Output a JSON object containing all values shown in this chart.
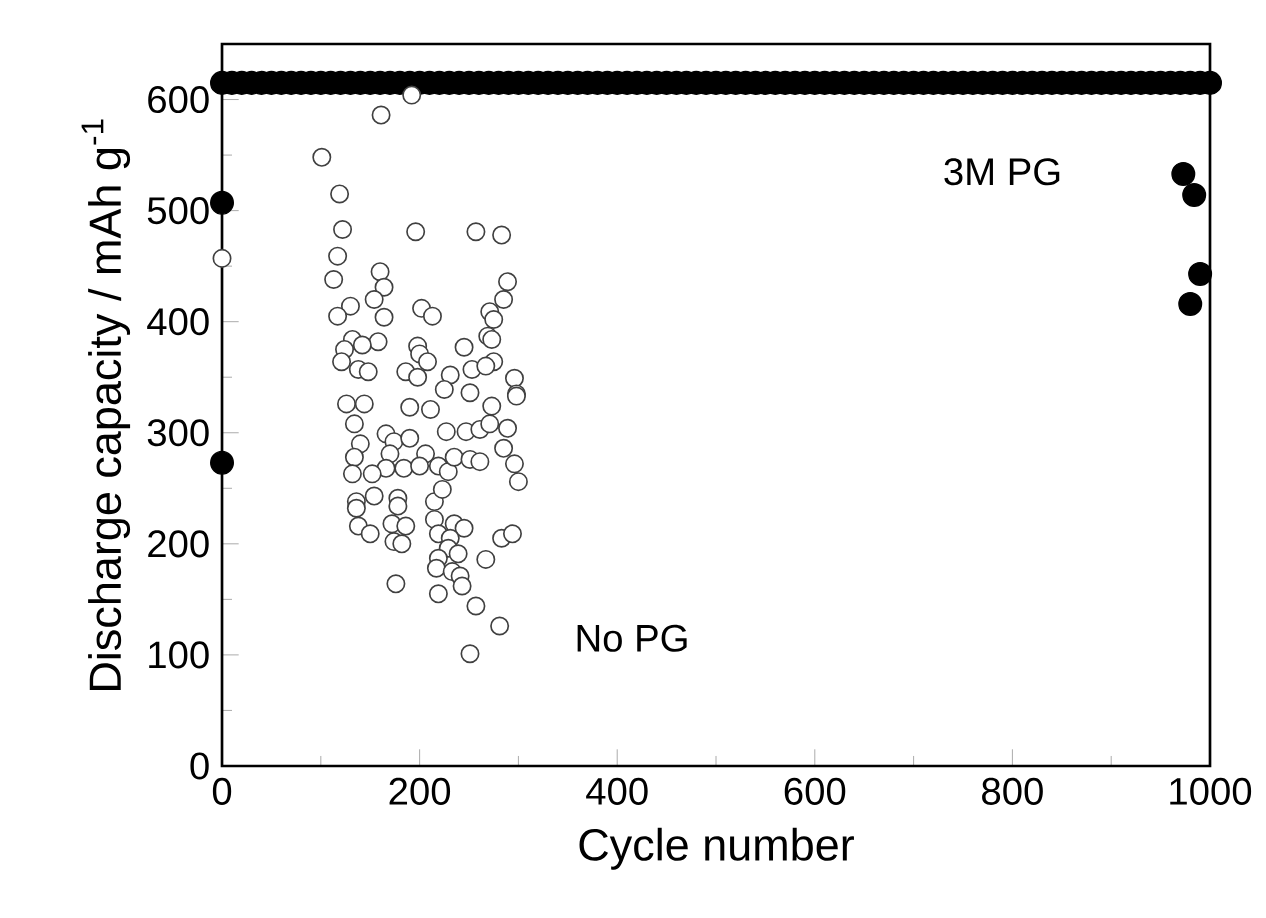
{
  "chart_data": {
    "type": "scatter",
    "xlabel": "Cycle number",
    "ylabel": "Discharge capacity / mAh g$^{-1}$",
    "xlim": [
      0,
      1000
    ],
    "ylim": [
      0,
      650
    ],
    "xticks": [
      0,
      200,
      400,
      600,
      800,
      1000
    ],
    "yticks": [
      0,
      100,
      200,
      300,
      400,
      500,
      600
    ],
    "grid": false,
    "series": [
      {
        "name": "3M PG",
        "color": "#000000",
        "marker": "circle",
        "x": [
          0,
          0,
          973,
          984,
          990,
          980,
          0,
          10,
          20,
          30,
          40,
          50,
          60,
          70,
          80,
          90,
          100,
          110,
          120,
          130,
          140,
          150,
          160,
          170,
          180,
          190,
          200,
          210,
          220,
          230,
          240,
          250,
          260,
          270,
          280,
          290,
          300,
          310,
          320,
          330,
          340,
          350,
          360,
          370,
          380,
          390,
          400,
          410,
          420,
          430,
          440,
          450,
          460,
          470,
          480,
          490,
          500,
          510,
          520,
          530,
          540,
          550,
          560,
          570,
          580,
          590,
          600,
          610,
          620,
          630,
          640,
          650,
          660,
          670,
          680,
          690,
          700,
          710,
          720,
          730,
          740,
          750,
          760,
          770,
          780,
          790,
          800,
          810,
          820,
          830,
          840,
          850,
          860,
          870,
          880,
          890,
          900,
          910,
          920,
          930,
          940,
          950,
          960,
          970,
          980,
          990,
          1000
        ],
        "values": [
          507,
          273,
          533,
          514,
          443,
          416,
          615,
          615,
          615,
          615,
          615,
          615,
          615,
          615,
          615,
          615,
          615,
          615,
          615,
          615,
          615,
          615,
          615,
          615,
          615,
          615,
          615,
          615,
          615,
          615,
          615,
          615,
          615,
          615,
          615,
          615,
          615,
          615,
          615,
          615,
          615,
          615,
          615,
          615,
          615,
          615,
          615,
          615,
          615,
          615,
          615,
          615,
          615,
          615,
          615,
          615,
          615,
          615,
          615,
          615,
          615,
          615,
          615,
          615,
          615,
          615,
          615,
          615,
          615,
          615,
          615,
          615,
          615,
          615,
          615,
          615,
          615,
          615,
          615,
          615,
          615,
          615,
          615,
          615,
          615,
          615,
          615,
          615,
          615,
          615,
          615,
          615,
          615,
          615,
          615,
          615,
          615,
          615,
          615,
          615,
          615,
          615,
          615,
          615,
          615,
          615,
          615
        ]
      },
      {
        "name": "No PG",
        "color": "#404040",
        "marker": "circle",
        "x": [
          0,
          192,
          161,
          101,
          119,
          122,
          196,
          257,
          283,
          117,
          113,
          160,
          164,
          289,
          154,
          285,
          130,
          117,
          164,
          202,
          213,
          271,
          275,
          158,
          132,
          142,
          124,
          121,
          138,
          148,
          198,
          200,
          208,
          186,
          198,
          245,
          231,
          253,
          269,
          273,
          275,
          267,
          296,
          225,
          251,
          298,
          298,
          126,
          144,
          190,
          211,
          273,
          134,
          166,
          174,
          190,
          227,
          247,
          261,
          271,
          289,
          140,
          134,
          170,
          206,
          184,
          166,
          200,
          219,
          229,
          235,
          251,
          261,
          285,
          296,
          300,
          132,
          152,
          154,
          136,
          136,
          178,
          178,
          215,
          223,
          172,
          186,
          138,
          150,
          215,
          235,
          245,
          219,
          231,
          174,
          182,
          283,
          294,
          229,
          239,
          219,
          267,
          217,
          233,
          241,
          243,
          176,
          219,
          257,
          281,
          251
        ],
        "values": [
          457,
          604,
          586,
          548,
          515,
          483,
          481,
          481,
          478,
          459,
          438,
          445,
          431,
          436,
          420,
          420,
          414,
          405,
          404,
          412,
          405,
          409,
          402,
          382,
          384,
          379,
          375,
          364,
          357,
          355,
          378,
          371,
          364,
          355,
          350,
          377,
          352,
          357,
          387,
          384,
          364,
          360,
          349,
          339,
          336,
          335,
          333,
          326,
          326,
          323,
          321,
          324,
          308,
          299,
          292,
          295,
          301,
          301,
          303,
          308,
          304,
          290,
          278,
          281,
          281,
          268,
          268,
          270,
          270,
          265,
          278,
          276,
          274,
          286,
          272,
          256,
          263,
          263,
          243,
          238,
          232,
          241,
          234,
          238,
          249,
          218,
          216,
          216,
          209,
          222,
          218,
          214,
          209,
          205,
          202,
          200,
          205,
          209,
          196,
          191,
          187,
          186,
          178,
          175,
          171,
          162,
          164,
          155,
          144,
          126,
          101
        ]
      }
    ]
  }
}
